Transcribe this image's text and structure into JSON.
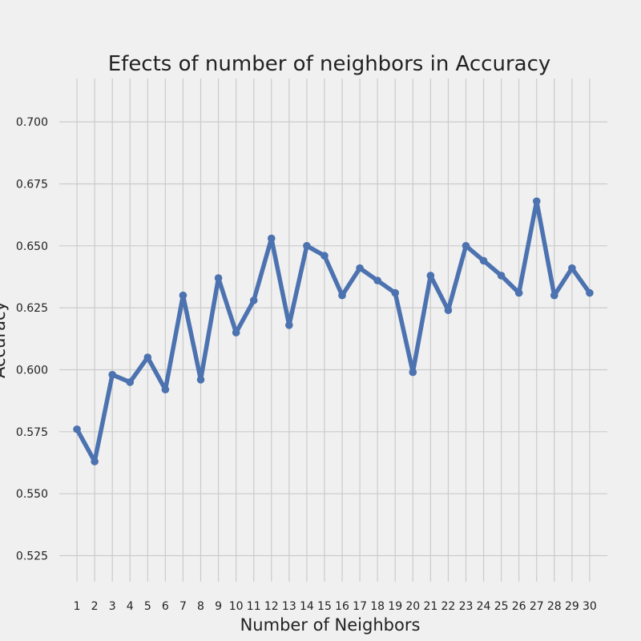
{
  "chart_data": {
    "type": "line",
    "title": "Efects of number of neighbors in Accuracy",
    "xlabel": "Number of Neighbors",
    "ylabel": "Accuracy",
    "x": [
      1,
      2,
      3,
      4,
      5,
      6,
      7,
      8,
      9,
      10,
      11,
      12,
      13,
      14,
      15,
      16,
      17,
      18,
      19,
      20,
      21,
      22,
      23,
      24,
      25,
      26,
      27,
      28,
      29,
      30
    ],
    "series": [
      {
        "values": [
          0.576,
          0.563,
          0.598,
          0.595,
          0.605,
          0.592,
          0.63,
          0.596,
          0.637,
          0.615,
          0.628,
          0.653,
          0.618,
          0.65,
          0.646,
          0.63,
          0.641,
          0.636,
          0.631,
          0.599,
          0.638,
          0.624,
          0.65,
          0.644,
          0.638,
          0.631,
          0.668,
          0.63,
          0.641,
          0.631
        ],
        "color": "#4c72b0"
      }
    ],
    "yticks": [
      "0.525",
      "0.550",
      "0.575",
      "0.600",
      "0.625",
      "0.650",
      "0.675",
      "0.700"
    ],
    "xticks": [
      "1",
      "2",
      "3",
      "4",
      "5",
      "6",
      "7",
      "8",
      "9",
      "10",
      "11",
      "12",
      "13",
      "14",
      "15",
      "16",
      "17",
      "18",
      "19",
      "20",
      "21",
      "22",
      "23",
      "24",
      "25",
      "26",
      "27",
      "28",
      "29",
      "30"
    ],
    "xlim": [
      0,
      31
    ],
    "ylim": [
      0.5145,
      0.7175
    ],
    "grid": true
  }
}
